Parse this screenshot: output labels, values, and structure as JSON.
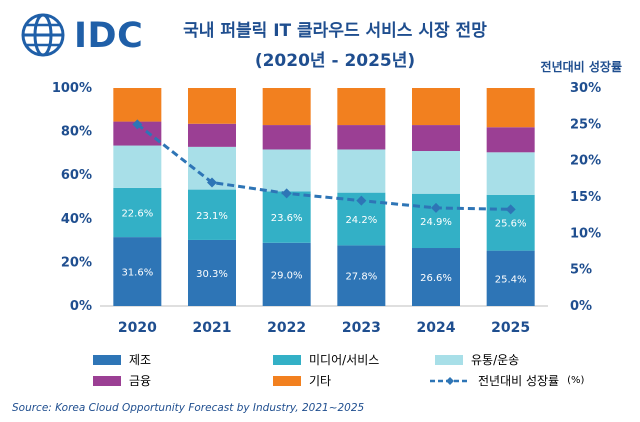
{
  "logo": {
    "text": "IDC"
  },
  "header": {
    "title": "국내 퍼블릭 IT 클라우드 서비스 시장 전망",
    "subtitle": "(2020년 - 2025년)",
    "right_axis_title": "전년대비 성장률"
  },
  "source": "Source: Korea Cloud Opportunity Forecast by Industry, 2021~2025",
  "colors": {
    "제조": "#2e75b6",
    "미디어/서비스": "#33b0c6",
    "유통/운송": "#a8dfe8",
    "금융": "#9b3f94",
    "기타": "#f2801f",
    "growth": "#2e75b6"
  },
  "legend": [
    {
      "key": "제조",
      "label": "제조"
    },
    {
      "key": "미디어/서비스",
      "label": "미디어/서비스"
    },
    {
      "key": "유통/운송",
      "label": "유통/운송"
    },
    {
      "key": "금융",
      "label": "금융"
    },
    {
      "key": "기타",
      "label": "기타"
    },
    {
      "key": "growth",
      "label": "전년대비 성장률",
      "unit": "(%)"
    }
  ],
  "chart_data": {
    "type": "bar",
    "stacked": true,
    "categories": [
      "2020",
      "2021",
      "2022",
      "2023",
      "2024",
      "2025"
    ],
    "series": [
      {
        "name": "제조",
        "values": [
          31.6,
          30.3,
          29.0,
          27.8,
          26.6,
          25.4
        ],
        "labels": [
          "31.6%",
          "30.3%",
          "29.0%",
          "27.8%",
          "26.6%",
          "25.4%"
        ]
      },
      {
        "name": "미디어/서비스",
        "values": [
          22.6,
          23.1,
          23.6,
          24.2,
          24.9,
          25.6
        ],
        "labels": [
          "22.6%",
          "23.1%",
          "23.6%",
          "24.2%",
          "24.9%",
          "25.6%"
        ]
      },
      {
        "name": "유통/운송",
        "values": [
          19.4,
          19.6,
          19.2,
          19.8,
          19.6,
          19.5
        ]
      },
      {
        "name": "금융",
        "values": [
          11.0,
          10.6,
          11.2,
          11.2,
          11.9,
          11.5
        ]
      },
      {
        "name": "기타",
        "values": [
          15.4,
          16.4,
          17.0,
          17.0,
          17.0,
          18.0
        ]
      }
    ],
    "line_series": {
      "name": "전년대비 성장률",
      "axis": "right",
      "values": [
        25.0,
        17.0,
        15.5,
        14.5,
        13.5,
        13.3
      ]
    },
    "left_axis": {
      "range": [
        0,
        100
      ],
      "ticks": [
        "0%",
        "20%",
        "40%",
        "60%",
        "80%",
        "100%"
      ]
    },
    "right_axis": {
      "range": [
        0,
        30
      ],
      "ticks": [
        "0%",
        "5%",
        "10%",
        "15%",
        "20%",
        "25%",
        "30%"
      ]
    }
  }
}
